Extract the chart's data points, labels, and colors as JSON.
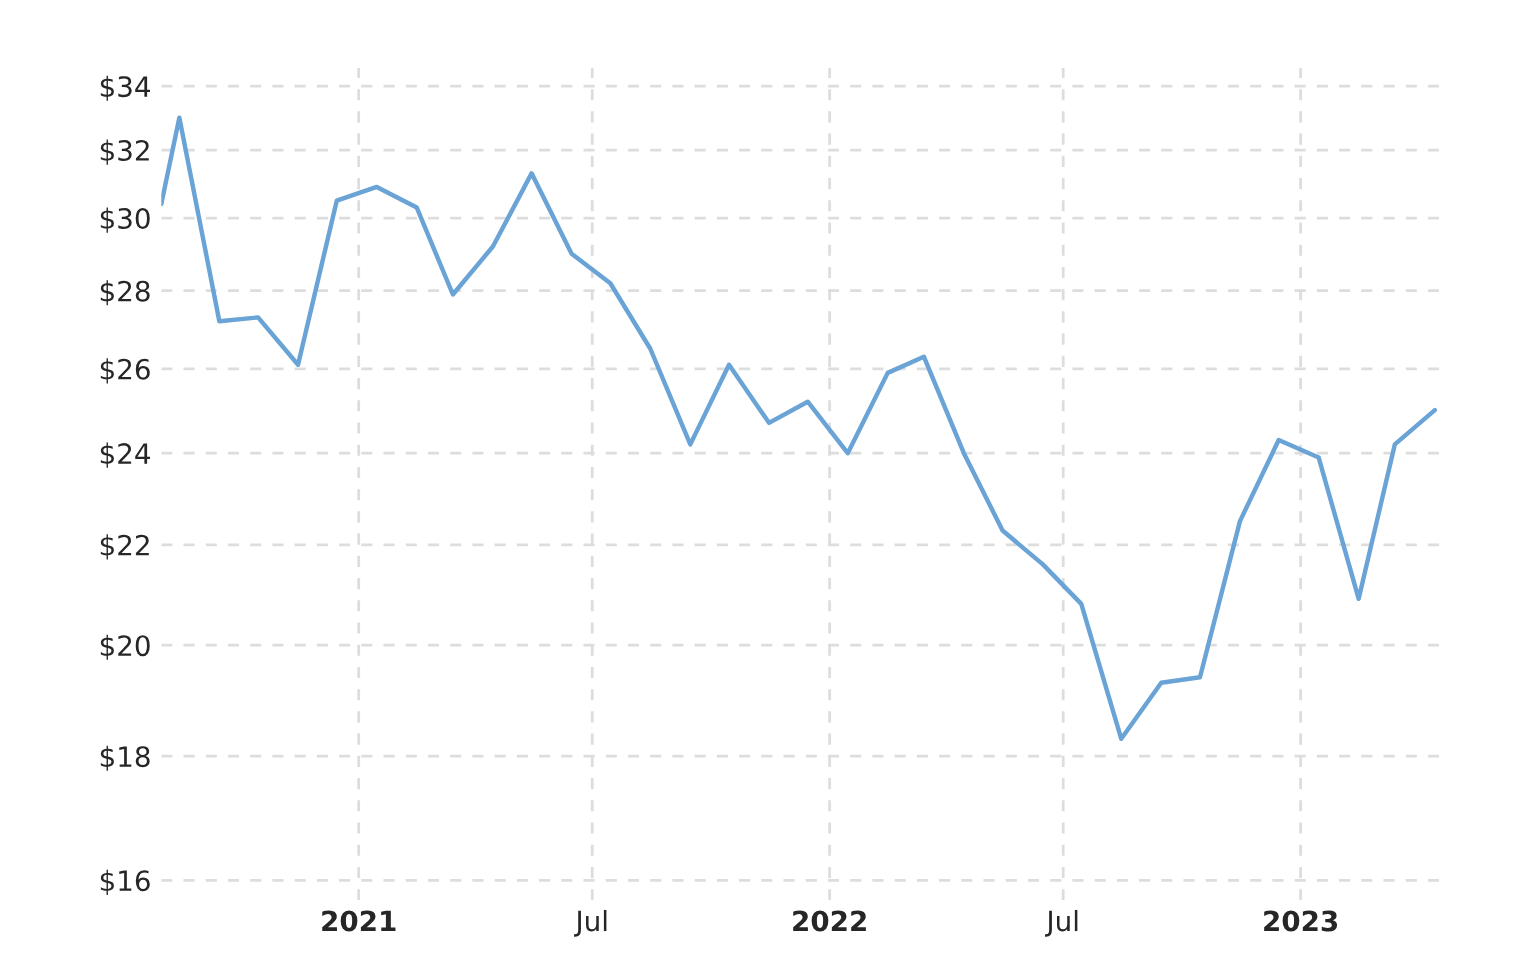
{
  "chart_data": {
    "type": "line",
    "log": "y",
    "grid": true,
    "line_style": "solid",
    "marker": "none",
    "x": [
      "2020-08-01",
      "2020-08-15",
      "2020-09-15",
      "2020-10-15",
      "2020-11-15",
      "2020-12-15",
      "2021-01-15",
      "2021-02-15",
      "2021-03-15",
      "2021-04-15",
      "2021-05-15",
      "2021-06-15",
      "2021-07-15",
      "2021-08-15",
      "2021-09-15",
      "2021-10-15",
      "2021-11-15",
      "2021-12-15",
      "2022-01-15",
      "2022-02-15",
      "2022-03-15",
      "2022-04-15",
      "2022-05-15",
      "2022-06-15",
      "2022-07-15",
      "2022-08-15",
      "2022-09-15",
      "2022-10-15",
      "2022-11-15",
      "2022-12-15",
      "2023-01-15",
      "2023-02-15",
      "2023-03-15",
      "2023-04-15"
    ],
    "series": [
      {
        "color": "#6aa3d5",
        "values": [
          30.4,
          33.0,
          27.2,
          27.3,
          26.1,
          30.5,
          30.9,
          30.3,
          27.9,
          29.2,
          31.3,
          29.0,
          28.2,
          26.5,
          24.2,
          26.1,
          24.7,
          25.2,
          24.0,
          25.9,
          26.3,
          24.0,
          22.3,
          21.6,
          20.8,
          18.3,
          19.3,
          19.4,
          22.5,
          24.3,
          23.9,
          20.9,
          24.2,
          25.0
        ]
      }
    ],
    "xlim": [
      "2020-08-01",
      "2023-04-22"
    ],
    "xticks": [
      {
        "value": "2021-01-01",
        "label": "2021"
      },
      {
        "value": "2021-07-01",
        "label": "Jul"
      },
      {
        "value": "2022-01-01",
        "label": "2022"
      },
      {
        "value": "2022-07-01",
        "label": "Jul"
      },
      {
        "value": "2023-01-01",
        "label": "2023"
      }
    ],
    "ylim": [
      15.7,
      34.6
    ],
    "yticks": [
      {
        "value": 16,
        "label": "$16"
      },
      {
        "value": 18,
        "label": "$18"
      },
      {
        "value": 20,
        "label": "$20"
      },
      {
        "value": 22,
        "label": "$22"
      },
      {
        "value": 24,
        "label": "$24"
      },
      {
        "value": 26,
        "label": "$26"
      },
      {
        "value": 28,
        "label": "$28"
      },
      {
        "value": 30,
        "label": "$30"
      },
      {
        "value": 32,
        "label": "$32"
      },
      {
        "value": 34,
        "label": "$34"
      }
    ]
  }
}
